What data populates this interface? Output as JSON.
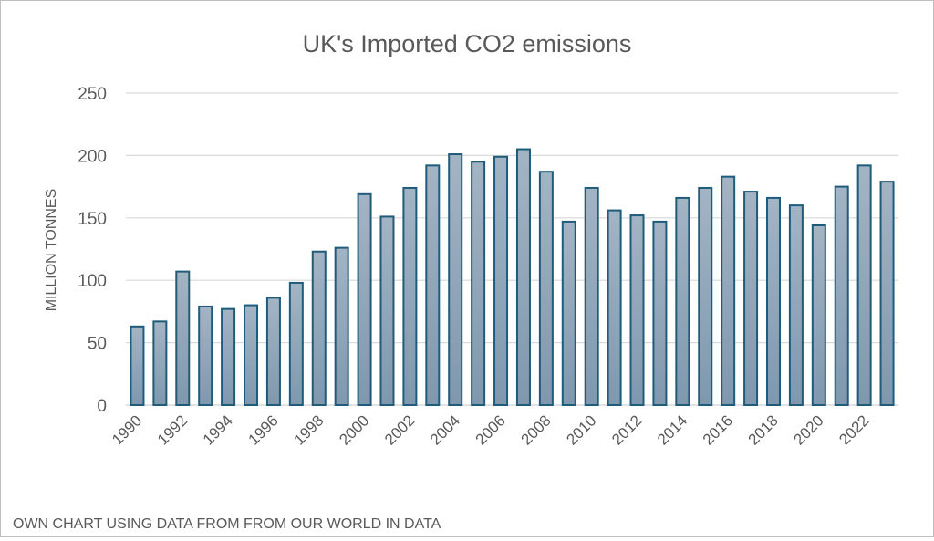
{
  "chart_data": {
    "type": "bar",
    "title": "UK's Imported CO2 emissions",
    "xlabel": "",
    "ylabel": "MILLION TONNES",
    "ylim": [
      0,
      250
    ],
    "yticks": [
      0,
      50,
      100,
      150,
      200,
      250
    ],
    "grid": true,
    "categories": [
      "1990",
      "1991",
      "1992",
      "1993",
      "1994",
      "1995",
      "1996",
      "1997",
      "1998",
      "1999",
      "2000",
      "2001",
      "2002",
      "2003",
      "2004",
      "2005",
      "2006",
      "2007",
      "2008",
      "2009",
      "2010",
      "2011",
      "2012",
      "2013",
      "2014",
      "2015",
      "2016",
      "2017",
      "2018",
      "2019",
      "2020",
      "2021",
      "2022",
      "2023"
    ],
    "values": [
      63,
      67,
      107,
      79,
      77,
      80,
      86,
      98,
      123,
      126,
      169,
      151,
      174,
      192,
      201,
      195,
      199,
      205,
      187,
      147,
      174,
      156,
      152,
      147,
      166,
      174,
      183,
      171,
      166,
      160,
      144,
      175,
      192,
      179
    ],
    "footnote": "OWN CHART USING DATA FROM FROM OUR WORLD IN DATA",
    "colors": {
      "bar_fill_top": "#a3b4c4",
      "bar_fill_bottom": "#7f98ae",
      "bar_stroke": "#1f5b7a",
      "grid": "#d9d9d9",
      "text": "#595959"
    }
  }
}
